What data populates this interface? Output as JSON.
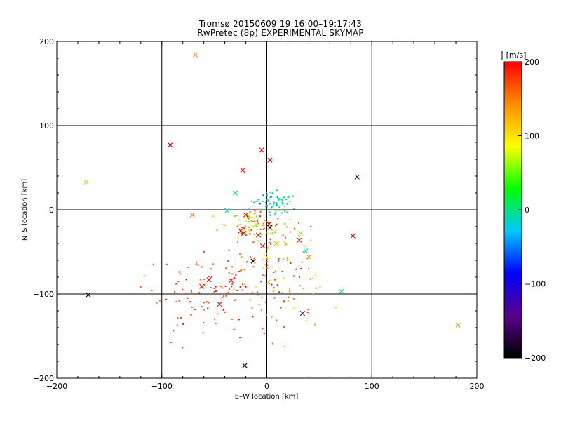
{
  "title": "Tromsø 20150609 19:16:00–19:17:43",
  "subtitle": "RwPretec (8p) EXPERIMENTAL SKYMAP",
  "chart_data": {
    "type": "scatter",
    "title": "Tromsø 20150609 19:16:00–19:17:43",
    "subtitle": "RwPretec (8p) EXPERIMENTAL SKYMAP",
    "xlabel": "E–W location [km]",
    "ylabel": "N–S location [km]",
    "xlim": [
      -200,
      200
    ],
    "ylim": [
      -200,
      200
    ],
    "xticks": [
      -200,
      -100,
      0,
      100,
      200
    ],
    "yticks": [
      -200,
      -100,
      0,
      100,
      200
    ],
    "grid": true,
    "colorbar": {
      "label": "[m/s]",
      "min": -200,
      "max": 200,
      "ticks": [
        200,
        100,
        0,
        -100,
        -200
      ],
      "colors": [
        "#000000",
        "#5a008c",
        "#0000ff",
        "#00c8ff",
        "#00ff00",
        "#ffff00",
        "#ff8c00",
        "#ff0000"
      ]
    },
    "markers_x": [
      {
        "x": -68,
        "y": 184,
        "v": 140
      },
      {
        "x": -92,
        "y": 77,
        "v": 200
      },
      {
        "x": -5,
        "y": 71,
        "v": 200
      },
      {
        "x": 3,
        "y": 59,
        "v": 200
      },
      {
        "x": -23,
        "y": 47,
        "v": 200
      },
      {
        "x": -172,
        "y": 33,
        "v": 60
      },
      {
        "x": 86,
        "y": 39,
        "v": -160
      },
      {
        "x": -71,
        "y": -6,
        "v": 150
      },
      {
        "x": -30,
        "y": 20,
        "v": 10
      },
      {
        "x": -38,
        "y": -1,
        "v": -20
      },
      {
        "x": -20,
        "y": -6,
        "v": 200
      },
      {
        "x": -25,
        "y": -25,
        "v": 200
      },
      {
        "x": -22,
        "y": -28,
        "v": 200
      },
      {
        "x": -8,
        "y": -30,
        "v": 200
      },
      {
        "x": 2,
        "y": -17,
        "v": 200
      },
      {
        "x": 3,
        "y": -21,
        "v": -200
      },
      {
        "x": -4,
        "y": -43,
        "v": 200
      },
      {
        "x": 9,
        "y": -40,
        "v": 120
      },
      {
        "x": 31,
        "y": -36,
        "v": 200
      },
      {
        "x": 32,
        "y": -28,
        "v": 60
      },
      {
        "x": 37,
        "y": -49,
        "v": -20
      },
      {
        "x": 40,
        "y": -56,
        "v": 140
      },
      {
        "x": 82,
        "y": -31,
        "v": 200
      },
      {
        "x": -13,
        "y": -61,
        "v": -200
      },
      {
        "x": -55,
        "y": -83,
        "v": 200
      },
      {
        "x": -34,
        "y": -84,
        "v": 200
      },
      {
        "x": -62,
        "y": -91,
        "v": 200
      },
      {
        "x": -170,
        "y": -101,
        "v": -200
      },
      {
        "x": -45,
        "y": -112,
        "v": 200
      },
      {
        "x": 71,
        "y": -97,
        "v": 0
      },
      {
        "x": 34,
        "y": -123,
        "v": -140
      },
      {
        "x": 182,
        "y": -137,
        "v": 140
      },
      {
        "x": -21,
        "y": -185,
        "v": -200
      }
    ]
  }
}
